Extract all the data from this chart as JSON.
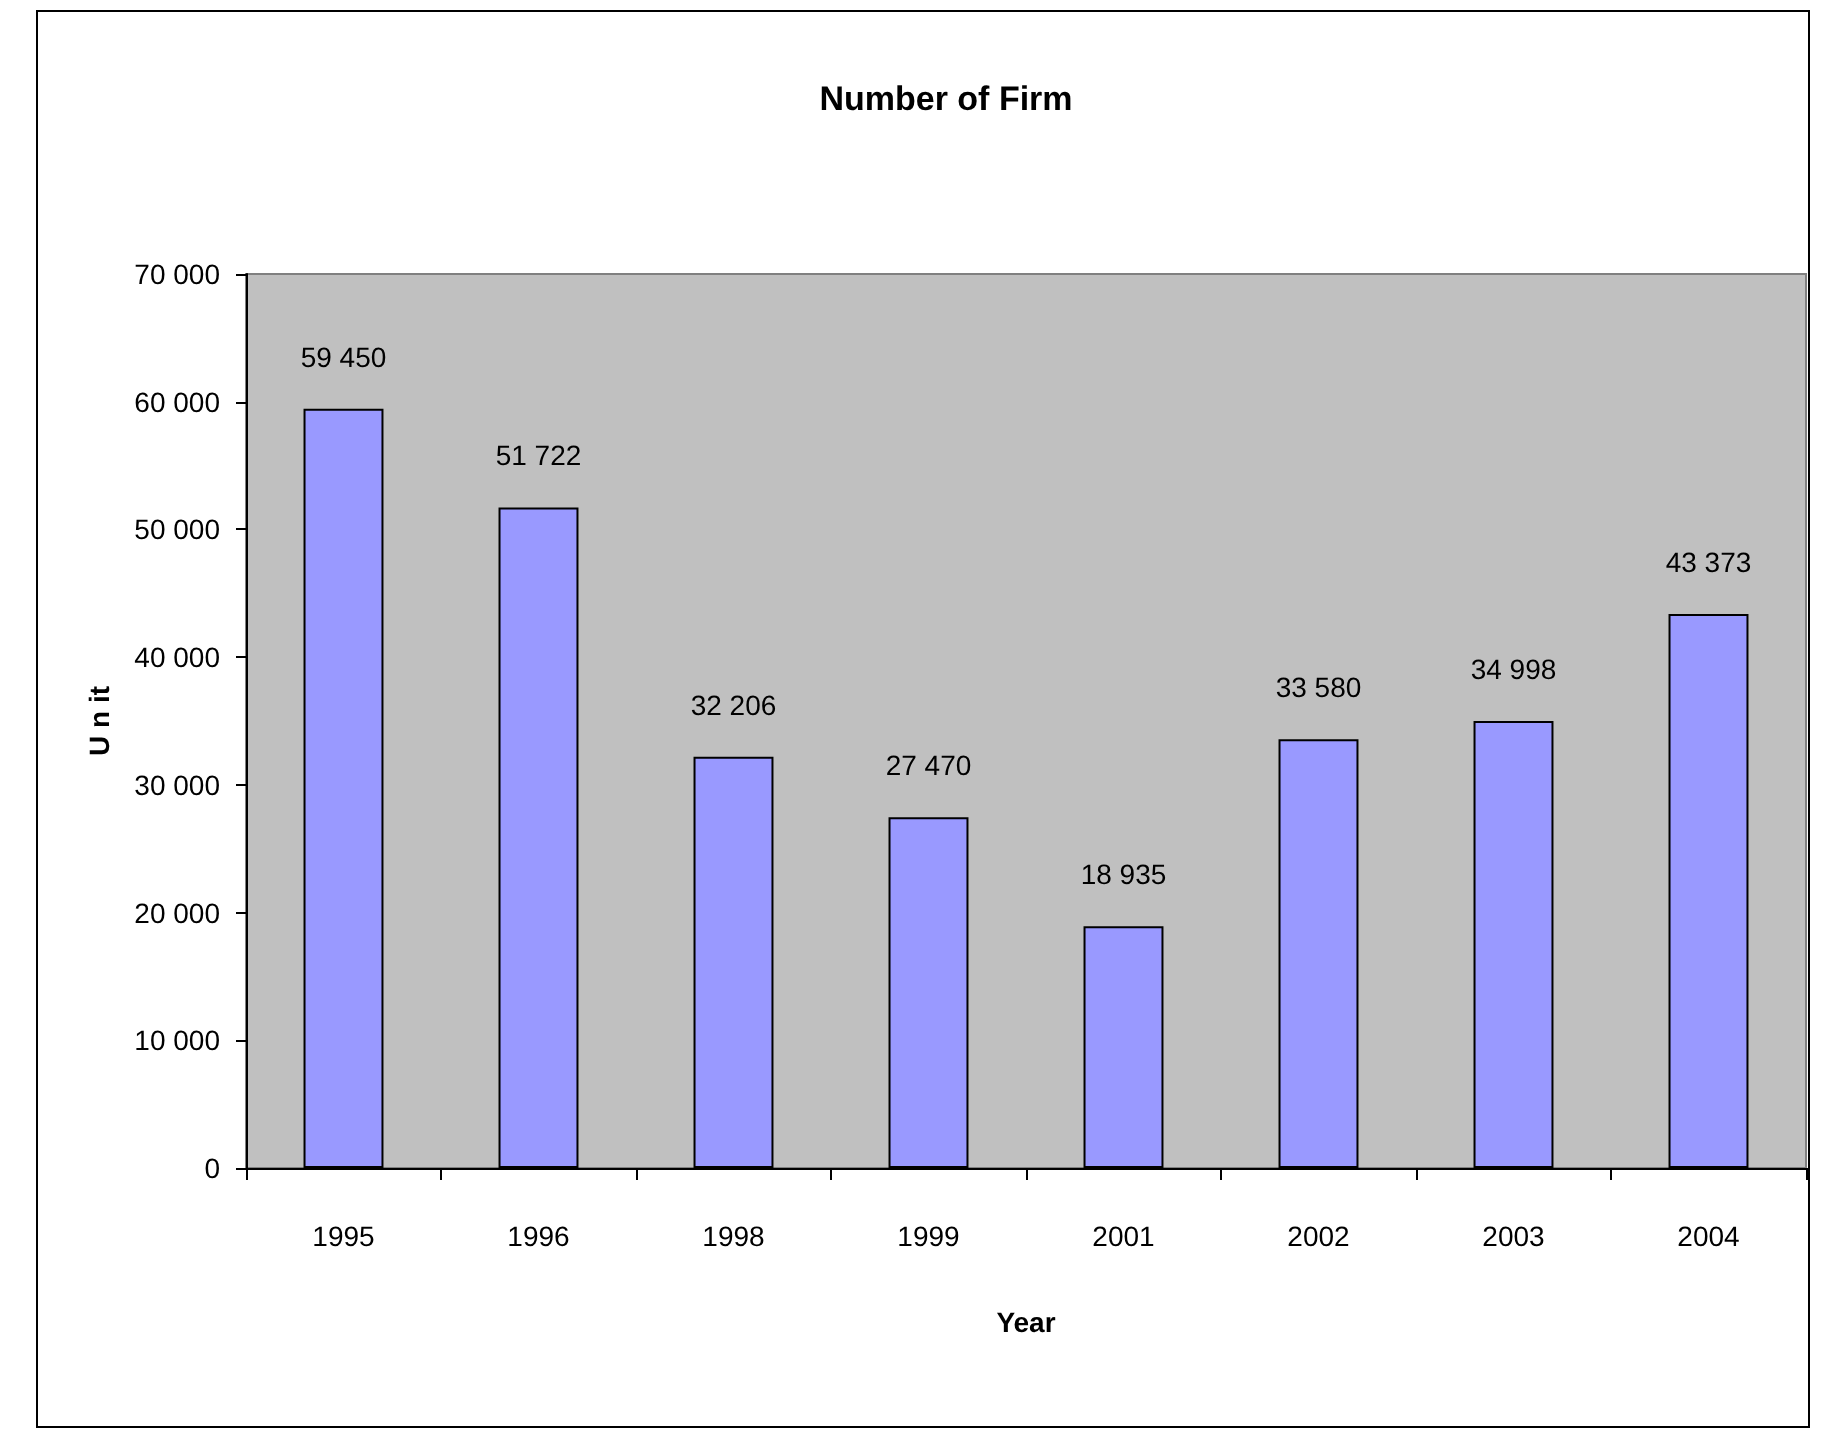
{
  "chart_data": {
    "type": "bar",
    "title": "Number of Firm",
    "xlabel": "Year",
    "ylabel": "U n it",
    "categories": [
      "1995",
      "1996",
      "1998",
      "1999",
      "2001",
      "2002",
      "2003",
      "2004"
    ],
    "values": [
      59450,
      51722,
      32206,
      27470,
      18935,
      33580,
      34998,
      43373
    ],
    "value_labels": [
      "59 450",
      "51 722",
      "32 206",
      "27 470",
      "18 935",
      "33 580",
      "34 998",
      "43 373"
    ],
    "color": "#9999ff",
    "ylim": [
      0,
      70000
    ],
    "yticks": [
      {
        "value": 0,
        "label": "0"
      },
      {
        "value": 10000,
        "label": "10 000"
      },
      {
        "value": 20000,
        "label": "20 000"
      },
      {
        "value": 30000,
        "label": "30 000"
      },
      {
        "value": 40000,
        "label": "40 000"
      },
      {
        "value": 50000,
        "label": "50 000"
      },
      {
        "value": 60000,
        "label": "60 000"
      },
      {
        "value": 70000,
        "label": "70 000"
      }
    ],
    "grid": false
  }
}
